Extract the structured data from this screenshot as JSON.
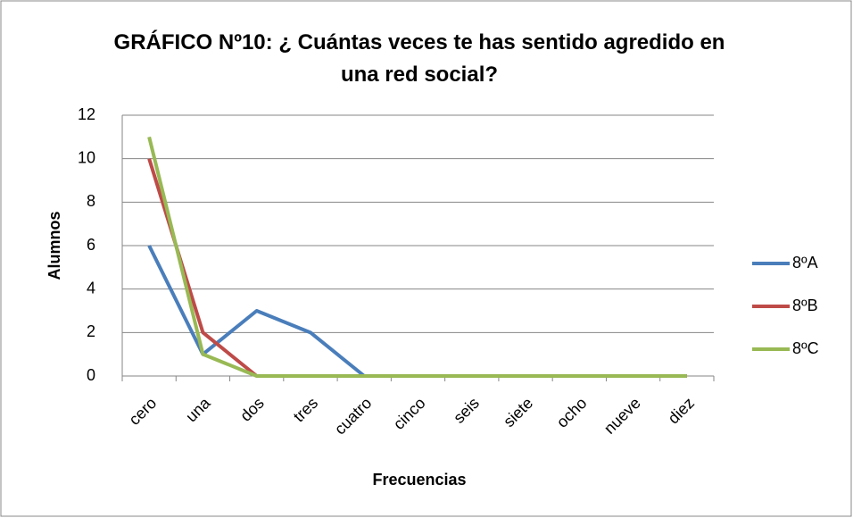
{
  "chart_data": {
    "type": "line",
    "title": "GRÁFICO Nº10: ¿ Cuántas veces te has sentido agredido en una red social?",
    "x_label": "Frecuencias",
    "y_label": "Alumnos",
    "categories": [
      "cero",
      "una",
      "dos",
      "tres",
      "cuatro",
      "cinco",
      "seis",
      "siete",
      "ocho",
      "nueve",
      "diez"
    ],
    "series": [
      {
        "name": "8ºA",
        "color": "#4a7ebb",
        "values": [
          6,
          1,
          3,
          2,
          0,
          0,
          0,
          0,
          0,
          0,
          0
        ]
      },
      {
        "name": "8ºB",
        "color": "#be4b48",
        "values": [
          10,
          2,
          0,
          0,
          0,
          0,
          0,
          0,
          0,
          0,
          0
        ]
      },
      {
        "name": "8ºC",
        "color": "#98b954",
        "values": [
          11,
          1,
          0,
          0,
          0,
          0,
          0,
          0,
          0,
          0,
          0
        ]
      }
    ],
    "ylim": [
      0,
      12
    ],
    "yticks": [
      0,
      2,
      4,
      6,
      8,
      10,
      12
    ],
    "grid": true,
    "legend": "right"
  }
}
